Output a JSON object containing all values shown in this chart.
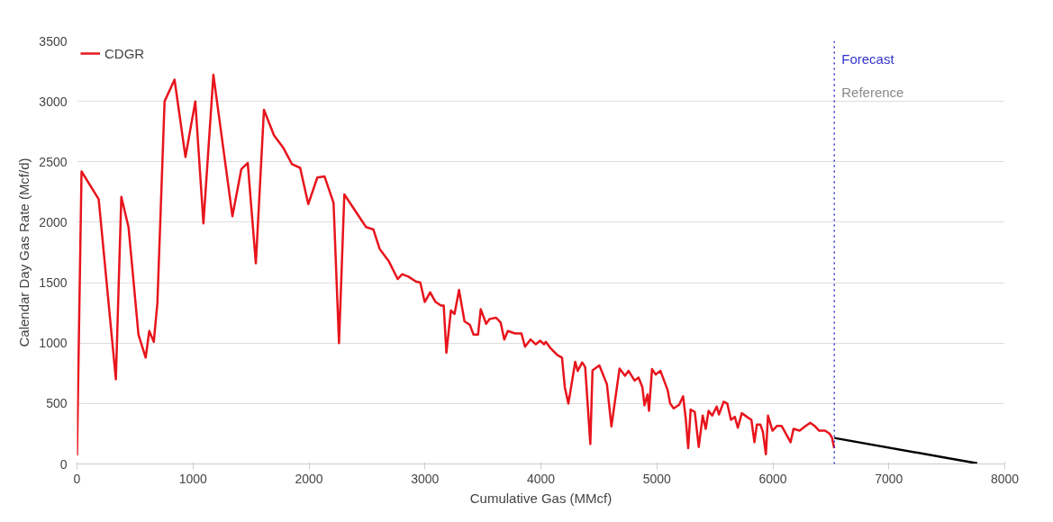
{
  "chart_data": {
    "type": "line",
    "xlabel": "Cumulative Gas (MMcf)",
    "ylabel": "Calendar Day Gas Rate (Mcf/d)",
    "xlim": [
      0,
      8000
    ],
    "ylim": [
      0,
      3500
    ],
    "xticks": [
      0,
      1000,
      2000,
      3000,
      4000,
      5000,
      6000,
      7000,
      8000
    ],
    "yticks": [
      0,
      500,
      1000,
      1500,
      2000,
      2500,
      3000,
      3500
    ],
    "grid": "y",
    "legend": "top left",
    "line_style": "solid",
    "marker": "none",
    "series": [
      {
        "name": "CDGR",
        "color": "#e8141c",
        "x": [
          0,
          39,
          187,
          335,
          382,
          444,
          530,
          592,
          623,
          662,
          693,
          755,
          841,
          935,
          1020,
          1090,
          1176,
          1340,
          1417,
          1472,
          1542,
          1612,
          1698,
          1776,
          1854,
          1924,
          1994,
          2072,
          2134,
          2212,
          2259,
          2305,
          2492,
          2555,
          2609,
          2687,
          2765,
          2804,
          2858,
          2921,
          2960,
          2998,
          3045,
          3092,
          3138,
          3162,
          3185,
          3224,
          3255,
          3294,
          3341,
          3388,
          3419,
          3458,
          3481,
          3528,
          3559,
          3614,
          3653,
          3684,
          3715,
          3777,
          3832,
          3863,
          3910,
          3956,
          3995,
          4027,
          4042,
          4081,
          4143,
          4182,
          4206,
          4237,
          4296,
          4317,
          4356,
          4382,
          4426,
          4445,
          4504,
          4569,
          4608,
          4678,
          4725,
          4756,
          4808,
          4842,
          4875,
          4893,
          4919,
          4932,
          4958,
          4990,
          5031,
          5093,
          5114,
          5145,
          5192,
          5226,
          5249,
          5270,
          5291,
          5327,
          5361,
          5395,
          5421,
          5446,
          5477,
          5516,
          5535,
          5576,
          5607,
          5639,
          5672,
          5698,
          5732,
          5776,
          5815,
          5841,
          5862,
          5893,
          5914,
          5940,
          5958,
          5997,
          6036,
          6075,
          6153,
          6178,
          6231,
          6283,
          6322,
          6360,
          6399,
          6451,
          6490,
          6511,
          6529
        ],
        "values": [
          70,
          2420,
          2190,
          700,
          2210,
          1960,
          1070,
          880,
          1100,
          1010,
          1330,
          3000,
          3180,
          2540,
          3000,
          1990,
          3220,
          2050,
          2440,
          2490,
          1660,
          2930,
          2720,
          2620,
          2480,
          2450,
          2150,
          2370,
          2380,
          2160,
          1000,
          2230,
          1960,
          1940,
          1780,
          1680,
          1530,
          1570,
          1550,
          1510,
          1500,
          1340,
          1420,
          1340,
          1310,
          1310,
          920,
          1270,
          1240,
          1440,
          1180,
          1150,
          1070,
          1070,
          1280,
          1160,
          1200,
          1210,
          1170,
          1030,
          1100,
          1080,
          1080,
          970,
          1030,
          990,
          1020,
          990,
          1010,
          960,
          900,
          880,
          635,
          500,
          845,
          770,
          840,
          800,
          165,
          775,
          815,
          660,
          310,
          790,
          730,
          770,
          690,
          715,
          635,
          485,
          575,
          440,
          785,
          740,
          770,
          610,
          500,
          460,
          490,
          560,
          375,
          130,
          450,
          430,
          140,
          400,
          290,
          440,
          400,
          475,
          410,
          515,
          500,
          365,
          390,
          300,
          420,
          390,
          365,
          180,
          325,
          325,
          265,
          80,
          400,
          275,
          315,
          315,
          180,
          290,
          275,
          315,
          340,
          315,
          275,
          275,
          250,
          215,
          130
        ]
      },
      {
        "color": "#000000",
        "x": [
          6530,
          7762
        ],
        "values": [
          215,
          5
        ]
      }
    ],
    "ref_lines": [
      {
        "axis": "x",
        "value": 6530,
        "label": "Forecast",
        "color": "#3333cc",
        "line_style": "dotted"
      }
    ],
    "annotations": [
      "Reference"
    ]
  }
}
